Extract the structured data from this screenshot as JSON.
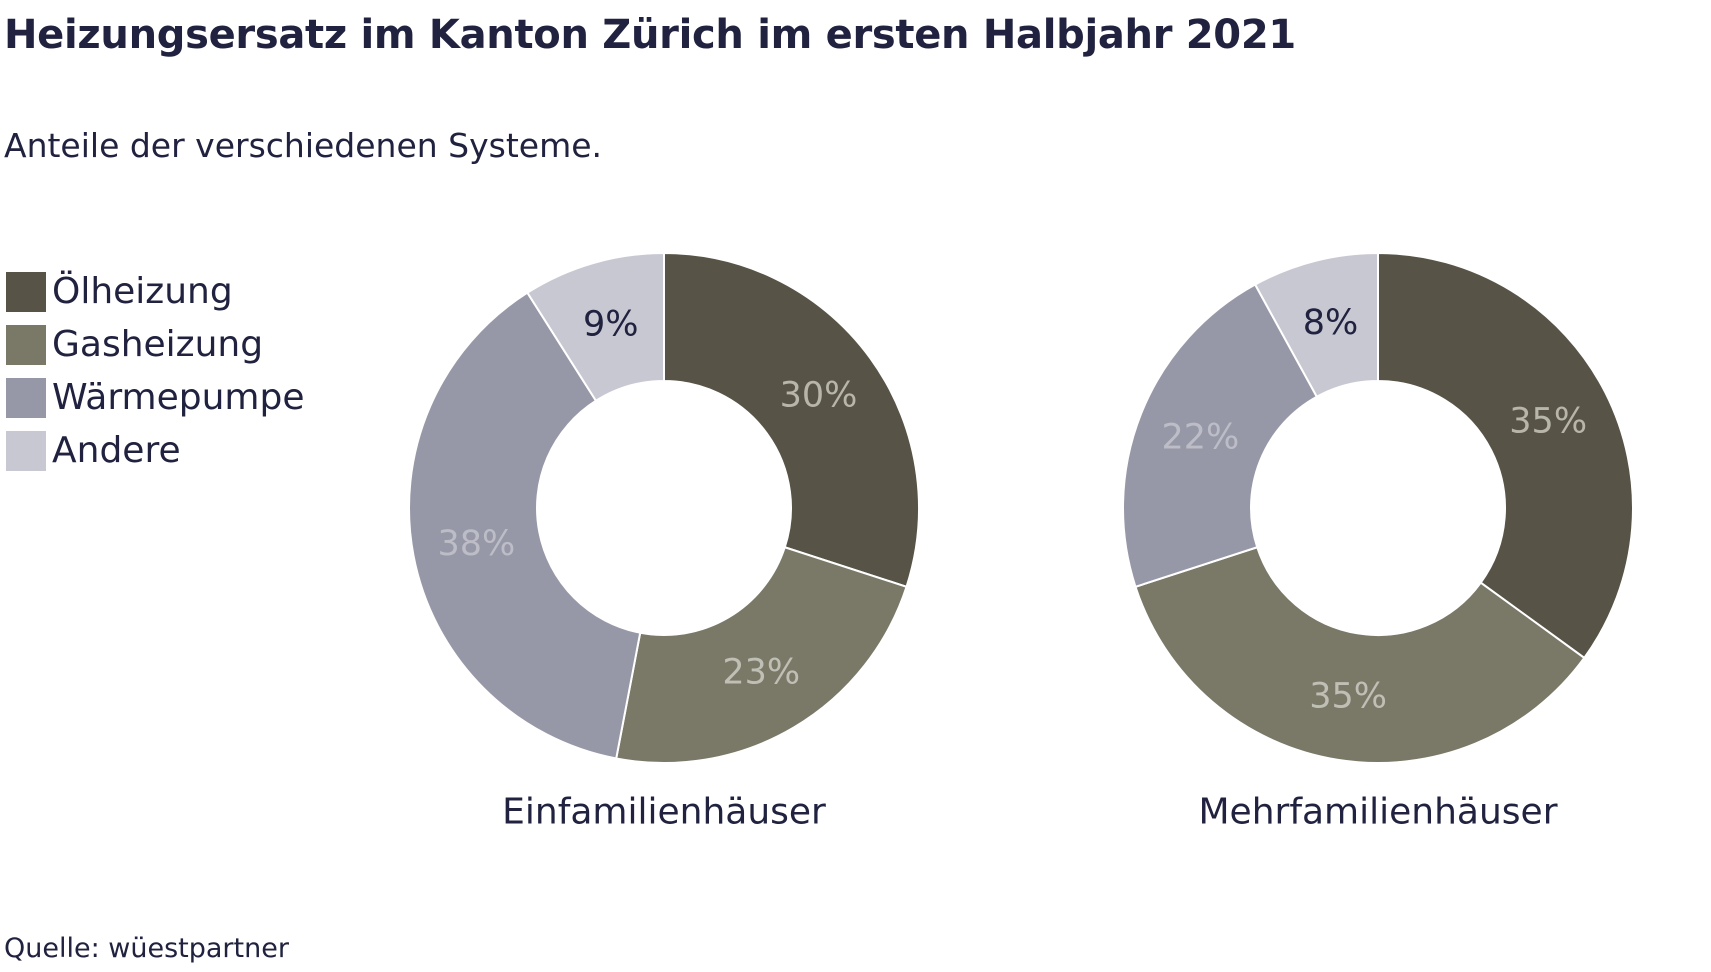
{
  "title": "Heizungsersatz im Kanton Zürich im ersten Halbjahr 2021",
  "subtitle": "Anteile der verschiedenen Systeme.",
  "source": "Quelle: wüestpartner",
  "legend": [
    {
      "label": "Ölheizung",
      "color": "#575346"
    },
    {
      "label": "Gasheizung",
      "color": "#7a7867"
    },
    {
      "label": "Wärmepumpe",
      "color": "#9798a7"
    },
    {
      "label": "Andere",
      "color": "#c8c8d2"
    }
  ],
  "chart_data": [
    {
      "type": "pie",
      "variant": "donut",
      "title": "Einfamilienhäuser",
      "categories": [
        "Ölheizung",
        "Gasheizung",
        "Wärmepumpe",
        "Andere"
      ],
      "values": [
        30,
        23,
        38,
        9
      ],
      "labels": [
        "30%",
        "23%",
        "38%",
        "9%"
      ],
      "colors": [
        "#575346",
        "#7a7867",
        "#9798a7",
        "#c8c8d2"
      ],
      "label_colors": [
        "#b8b5aa",
        "#c0bfb5",
        "#bdbdc7",
        "#20223f"
      ]
    },
    {
      "type": "pie",
      "variant": "donut",
      "title": "Mehrfamilienhäuser",
      "categories": [
        "Ölheizung",
        "Gasheizung",
        "Wärmepumpe",
        "Andere"
      ],
      "values": [
        35,
        35,
        22,
        8
      ],
      "labels": [
        "35%",
        "35%",
        "22%",
        "8%"
      ],
      "colors": [
        "#575346",
        "#7a7867",
        "#9798a7",
        "#c8c8d2"
      ],
      "label_colors": [
        "#b8b5aa",
        "#c0bfb5",
        "#bdbdc7",
        "#20223f"
      ]
    }
  ]
}
